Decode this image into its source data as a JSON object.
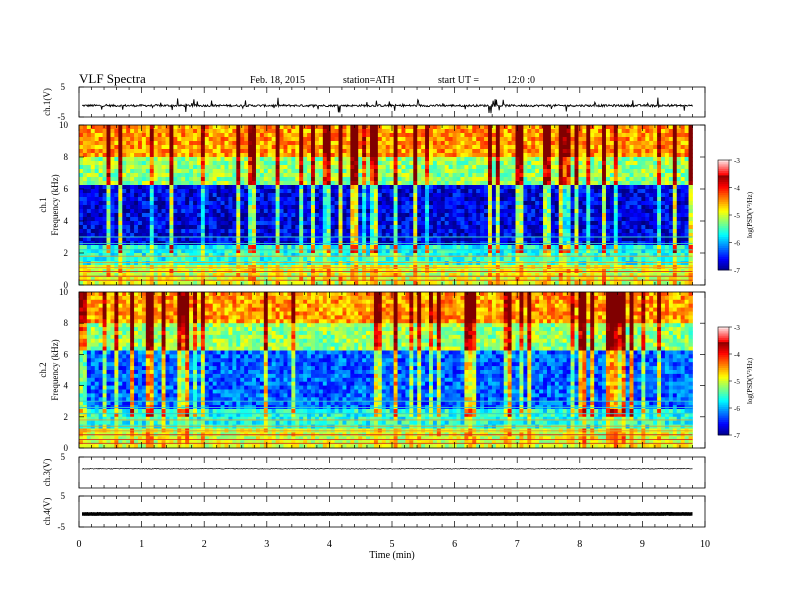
{
  "header": {
    "title": "VLF Spectra",
    "date": "Feb. 18, 2015",
    "station": "station=ATH",
    "start_label": "start UT =",
    "start_time": "12:0 :0"
  },
  "chart_data": [
    {
      "id": "ch1-waveform",
      "type": "line",
      "ylabel": "ch.1(V)",
      "ylim": [
        -5,
        5
      ],
      "yticks": [
        "5",
        "-5"
      ],
      "baseline": -1.2,
      "noise": 0.35,
      "xlim": [
        0,
        10
      ]
    },
    {
      "id": "ch1-spectrogram",
      "type": "heatmap",
      "ylabel_lines": [
        "ch.1",
        "Frequency (kHz)"
      ],
      "ylim": [
        0,
        10
      ],
      "yticks": [
        0,
        2,
        4,
        6,
        8,
        10
      ],
      "xlim": [
        0,
        10
      ],
      "data_end_min": 9.8,
      "colorbar": {
        "label": "log(PSD(V²/Hz)",
        "range": [
          -7,
          -3
        ],
        "ticks": [
          -3,
          -4,
          -5,
          -6,
          -7
        ]
      }
    },
    {
      "id": "ch2-spectrogram",
      "type": "heatmap",
      "ylabel_lines": [
        "ch.2",
        "Frequency (kHz)"
      ],
      "ylim": [
        0,
        10
      ],
      "yticks": [
        0,
        2,
        4,
        6,
        8,
        10
      ],
      "xlim": [
        0,
        10
      ],
      "data_end_min": 9.8,
      "colorbar": {
        "label": "log(PSD(V²/Hz)",
        "range": [
          -7,
          -3
        ],
        "ticks": [
          -3,
          -4,
          -5,
          -6,
          -7
        ]
      }
    },
    {
      "id": "ch3-waveform",
      "type": "line",
      "ylabel": "ch.3(V)",
      "ylim": [
        -5,
        5
      ],
      "yticks": [
        "5"
      ],
      "baseline": 1.2,
      "noise": 0.12,
      "xlim": [
        0,
        10
      ]
    },
    {
      "id": "ch4-waveform",
      "type": "line",
      "ylabel": "ch.4(V)",
      "ylim": [
        -5,
        5
      ],
      "yticks": [
        "5",
        "-5"
      ],
      "baseline": -0.8,
      "noise": 0.05,
      "xlim": [
        0,
        10
      ]
    }
  ],
  "x_axis": {
    "label": "Time (min)",
    "ticks": [
      0,
      1,
      2,
      3,
      4,
      5,
      6,
      7,
      8,
      9,
      10
    ]
  }
}
